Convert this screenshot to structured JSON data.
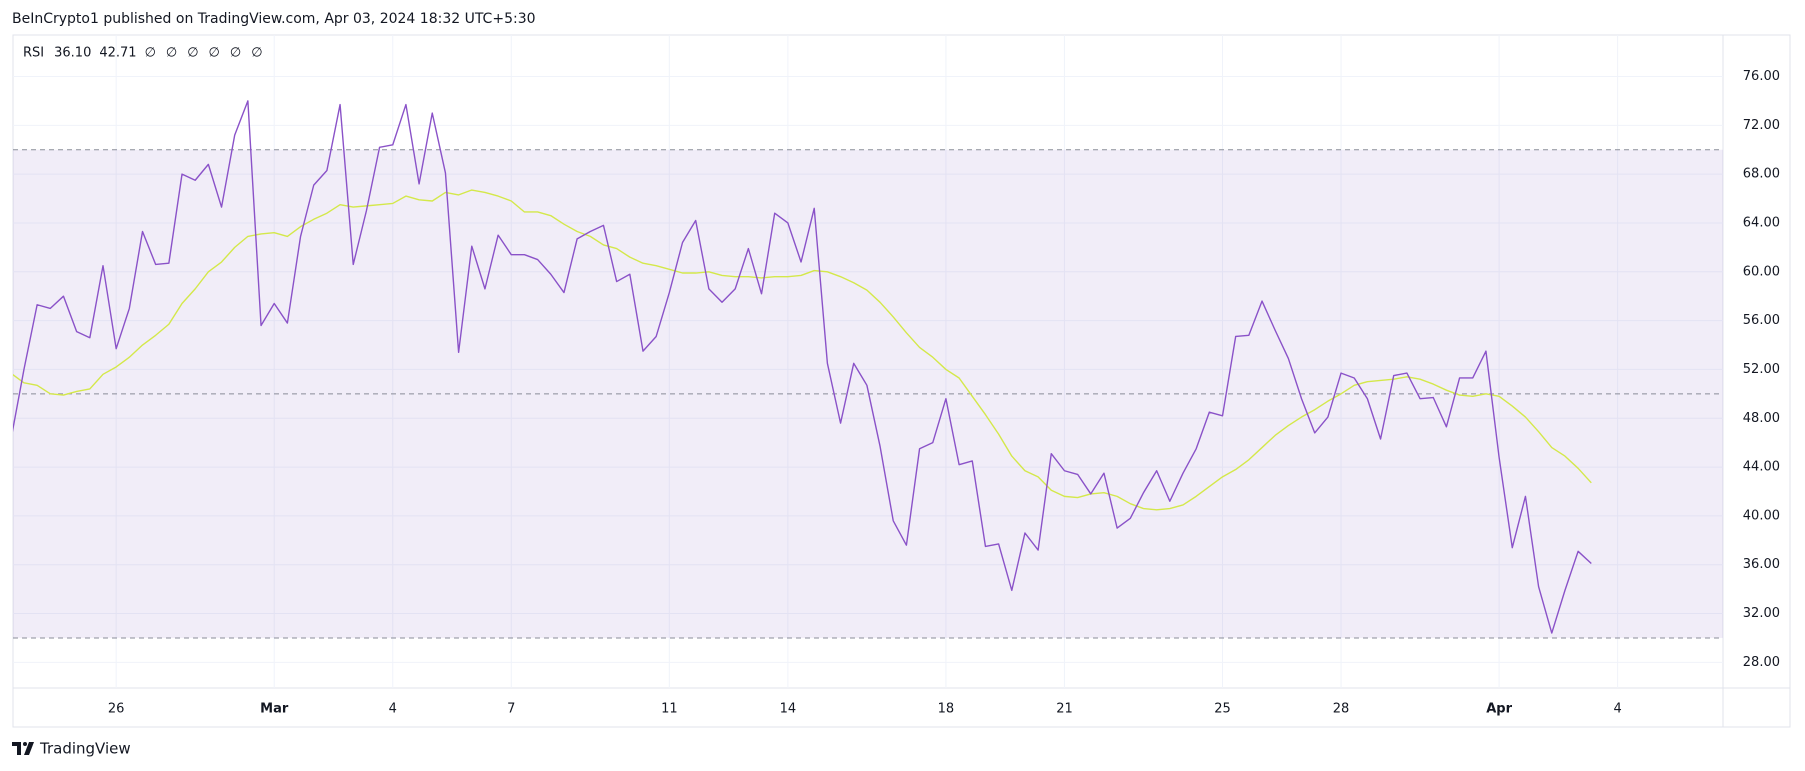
{
  "header": "BeInCrypto1 published on TradingView.com, Apr 03, 2024 18:32 UTC+5:30",
  "footer": "TradingView",
  "chart_data": {
    "type": "line",
    "title": "RSI",
    "legend_extra": [
      "∅",
      "∅",
      "∅",
      "∅",
      "∅",
      "∅"
    ],
    "categories": [
      null,
      null,
      null,
      null,
      null,
      null,
      null,
      null,
      "26",
      null,
      null,
      null,
      null,
      null,
      null,
      null,
      null,
      null,
      null,
      null,
      "Mar",
      null,
      null,
      null,
      null,
      null,
      null,
      null,
      null,
      "4",
      null,
      null,
      null,
      null,
      null,
      null,
      null,
      null,
      "7",
      null,
      null,
      null,
      null,
      null,
      null,
      null,
      null,
      null,
      null,
      null,
      "11",
      null,
      null,
      null,
      null,
      null,
      null,
      null,
      null,
      "14",
      null,
      null,
      null,
      null,
      null,
      null,
      null,
      null,
      null,
      null,
      null,
      "18",
      null,
      null,
      null,
      null,
      null,
      null,
      null,
      null,
      "21",
      null,
      null,
      null,
      null,
      null,
      null,
      null,
      null,
      null,
      null,
      null,
      "25",
      null,
      null,
      null,
      null,
      null,
      null,
      null,
      null,
      "28",
      null,
      null,
      null,
      null,
      null,
      null,
      null,
      null,
      null,
      null,
      null,
      "Apr",
      null,
      null,
      null,
      null,
      null,
      null,
      null,
      null,
      "4",
      null,
      null,
      null,
      null,
      null,
      null,
      null,
      null
    ],
    "series": [
      {
        "color": "#8a52c8",
        "last_label": "36.10",
        "values": [
          46.2,
          52.0,
          57.3,
          57.0,
          58.0,
          55.1,
          54.6,
          60.5,
          53.7,
          57.0,
          63.3,
          60.6,
          60.7,
          68.0,
          67.5,
          68.8,
          65.3,
          71.2,
          74.0,
          55.6,
          57.4,
          55.8,
          62.9,
          67.1,
          68.3,
          73.7,
          60.6,
          65.0,
          70.2,
          70.4,
          73.7,
          67.2,
          73.0,
          68.1,
          53.4,
          62.1,
          58.6,
          63.0,
          61.4,
          61.4,
          61.0,
          59.8,
          58.3,
          62.7,
          63.3,
          63.8,
          59.2,
          59.8,
          53.5,
          54.7,
          58.3,
          62.4,
          64.2,
          58.6,
          57.5,
          58.6,
          61.9,
          58.2,
          64.8,
          64.0,
          60.8,
          65.2,
          52.5,
          47.6,
          52.5,
          50.7,
          45.7,
          39.6,
          37.6,
          45.5,
          46.0,
          49.6,
          44.2,
          44.5,
          37.5,
          37.7,
          33.9,
          38.6,
          37.2,
          45.1,
          43.7,
          43.4,
          41.8,
          43.5,
          39.0,
          39.8,
          41.9,
          43.7,
          41.2,
          43.5,
          45.5,
          48.5,
          48.2,
          54.7,
          54.8,
          57.6,
          55.2,
          52.9,
          49.6,
          46.8,
          48.1,
          51.7,
          51.3,
          49.6,
          46.3,
          51.5,
          51.7,
          49.6,
          49.7,
          47.3,
          51.3,
          51.3,
          53.5,
          44.8,
          37.4,
          41.6,
          34.2,
          30.4,
          33.9,
          37.1,
          36.1,
          null,
          null,
          null,
          null,
          null,
          null,
          null,
          null,
          null,
          null
        ]
      },
      {
        "color": "#d4e84a",
        "last_label": "42.71",
        "values": [
          51.7,
          50.9,
          50.7,
          50.0,
          49.9,
          50.2,
          50.4,
          51.6,
          52.2,
          53.0,
          54.0,
          54.8,
          55.7,
          57.4,
          58.6,
          60.0,
          60.8,
          62.0,
          62.9,
          63.1,
          63.2,
          62.9,
          63.7,
          64.3,
          64.8,
          65.5,
          65.3,
          65.4,
          65.5,
          65.6,
          66.2,
          65.9,
          65.8,
          66.5,
          66.3,
          66.7,
          66.5,
          66.2,
          65.8,
          64.9,
          64.9,
          64.6,
          63.9,
          63.3,
          62.9,
          62.2,
          61.9,
          61.2,
          60.7,
          60.5,
          60.2,
          59.9,
          59.9,
          60.0,
          59.7,
          59.6,
          59.6,
          59.5,
          59.6,
          59.6,
          59.7,
          60.1,
          60.0,
          59.6,
          59.1,
          58.5,
          57.5,
          56.3,
          55.0,
          53.8,
          53.0,
          52.0,
          51.3,
          49.8,
          48.3,
          46.7,
          44.9,
          43.7,
          43.2,
          42.1,
          41.6,
          41.5,
          41.8,
          41.9,
          41.6,
          41.0,
          40.6,
          40.5,
          40.6,
          40.9,
          41.6,
          42.4,
          43.2,
          43.8,
          44.6,
          45.6,
          46.6,
          47.4,
          48.1,
          48.7,
          49.4,
          50.0,
          50.7,
          51.0,
          51.1,
          51.2,
          51.4,
          51.2,
          50.8,
          50.3,
          49.9,
          49.8,
          50.0,
          49.8,
          49.0,
          48.1,
          46.9,
          45.6,
          44.9,
          43.9,
          42.71,
          null,
          null,
          null,
          null,
          null,
          null,
          null,
          null,
          null,
          null
        ]
      }
    ],
    "bands": {
      "upper": 70,
      "middle": 50,
      "lower": 30,
      "fill": "rgba(126,87,194,0.11)",
      "line_color": "#8a8d99"
    },
    "ylim": [
      25.9,
      79.4
    ],
    "yticks": [
      {
        "value": 28,
        "label": "28.00"
      },
      {
        "value": 32,
        "label": "32.00"
      },
      {
        "value": 36,
        "label": "36.00"
      },
      {
        "value": 40,
        "label": "40.00"
      },
      {
        "value": 44,
        "label": "44.00"
      },
      {
        "value": 48,
        "label": "48.00"
      },
      {
        "value": 52,
        "label": "52.00"
      },
      {
        "value": 56,
        "label": "56.00"
      },
      {
        "value": 60,
        "label": "60.00"
      },
      {
        "value": 64,
        "label": "64.00"
      },
      {
        "value": 68,
        "label": "68.00"
      },
      {
        "value": 72,
        "label": "72.00"
      },
      {
        "value": 76,
        "label": "76.00"
      }
    ],
    "grid": true
  }
}
